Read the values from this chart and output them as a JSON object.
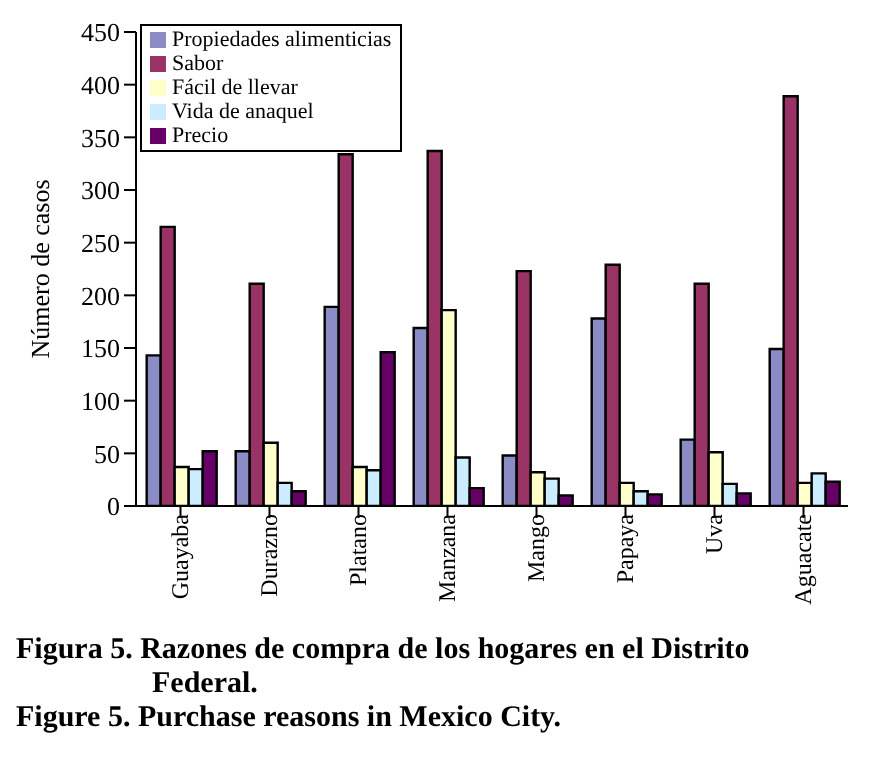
{
  "chart_data": {
    "type": "bar",
    "ylabel": "Número de casos",
    "categories": [
      "Guayaba",
      "Durazno",
      "Platano",
      "Manzana",
      "Mango",
      "Papaya",
      "Uva",
      "Aguacate"
    ],
    "series": [
      {
        "name": "Propiedades alimenticias",
        "color": "#8b8bc6",
        "values": [
          143,
          52,
          189,
          169,
          48,
          178,
          63,
          149
        ]
      },
      {
        "name": "Sabor",
        "color": "#993366",
        "values": [
          265,
          211,
          334,
          337,
          223,
          229,
          211,
          389
        ]
      },
      {
        "name": "Fácil de llevar",
        "color": "#ffffcc",
        "values": [
          37,
          60,
          37,
          186,
          32,
          22,
          51,
          22
        ]
      },
      {
        "name": "Vida de anaquel",
        "color": "#ccecff",
        "values": [
          35,
          22,
          34,
          46,
          26,
          14,
          21,
          31
        ]
      },
      {
        "name": "Precio",
        "color": "#660066",
        "values": [
          52,
          14,
          146,
          17,
          10,
          11,
          12,
          23
        ]
      }
    ],
    "ylim": [
      0,
      450
    ],
    "yticks": [
      0,
      50,
      100,
      150,
      200,
      250,
      300,
      350,
      400,
      450
    ],
    "grid": false,
    "legend": "top left",
    "annotations": [
      "Figura 5. Razones de compra de los hogares en el Distrito Federal.",
      "Figure 5. Purchase reasons in Mexico City."
    ]
  }
}
